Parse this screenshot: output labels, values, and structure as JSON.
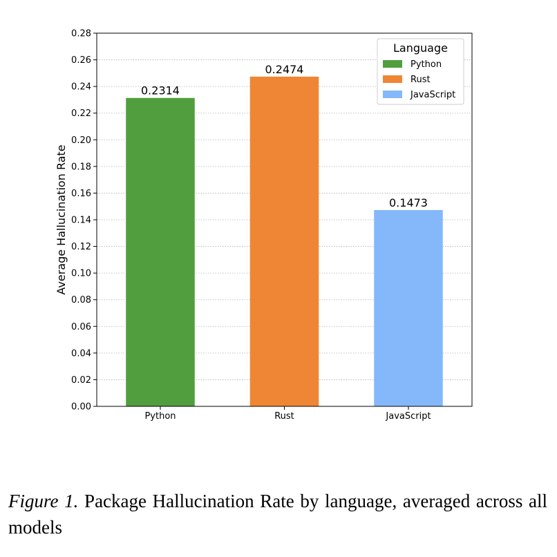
{
  "chart_data": {
    "type": "bar",
    "categories": [
      "Python",
      "Rust",
      "JavaScript"
    ],
    "values": [
      0.2314,
      0.2474,
      0.1473
    ],
    "value_labels": [
      "0.2314",
      "0.2474",
      "0.1473"
    ],
    "colors": [
      "#519e3e",
      "#ef8636",
      "#85b8fa"
    ],
    "ylabel": "Average Hallucination Rate",
    "xlabel": "",
    "ylim": [
      0,
      0.28
    ],
    "yticks": [
      "0.00",
      "0.02",
      "0.04",
      "0.06",
      "0.08",
      "0.10",
      "0.12",
      "0.14",
      "0.16",
      "0.18",
      "0.20",
      "0.22",
      "0.24",
      "0.26",
      "0.28"
    ],
    "grid": "horizontal-dotted",
    "legend": {
      "title": "Language",
      "placement": "top-right",
      "entries": [
        "Python",
        "Rust",
        "JavaScript"
      ]
    }
  },
  "caption": {
    "figure_label": "Figure 1.",
    "text": "Package Hallucination Rate by language, averaged across all models"
  }
}
